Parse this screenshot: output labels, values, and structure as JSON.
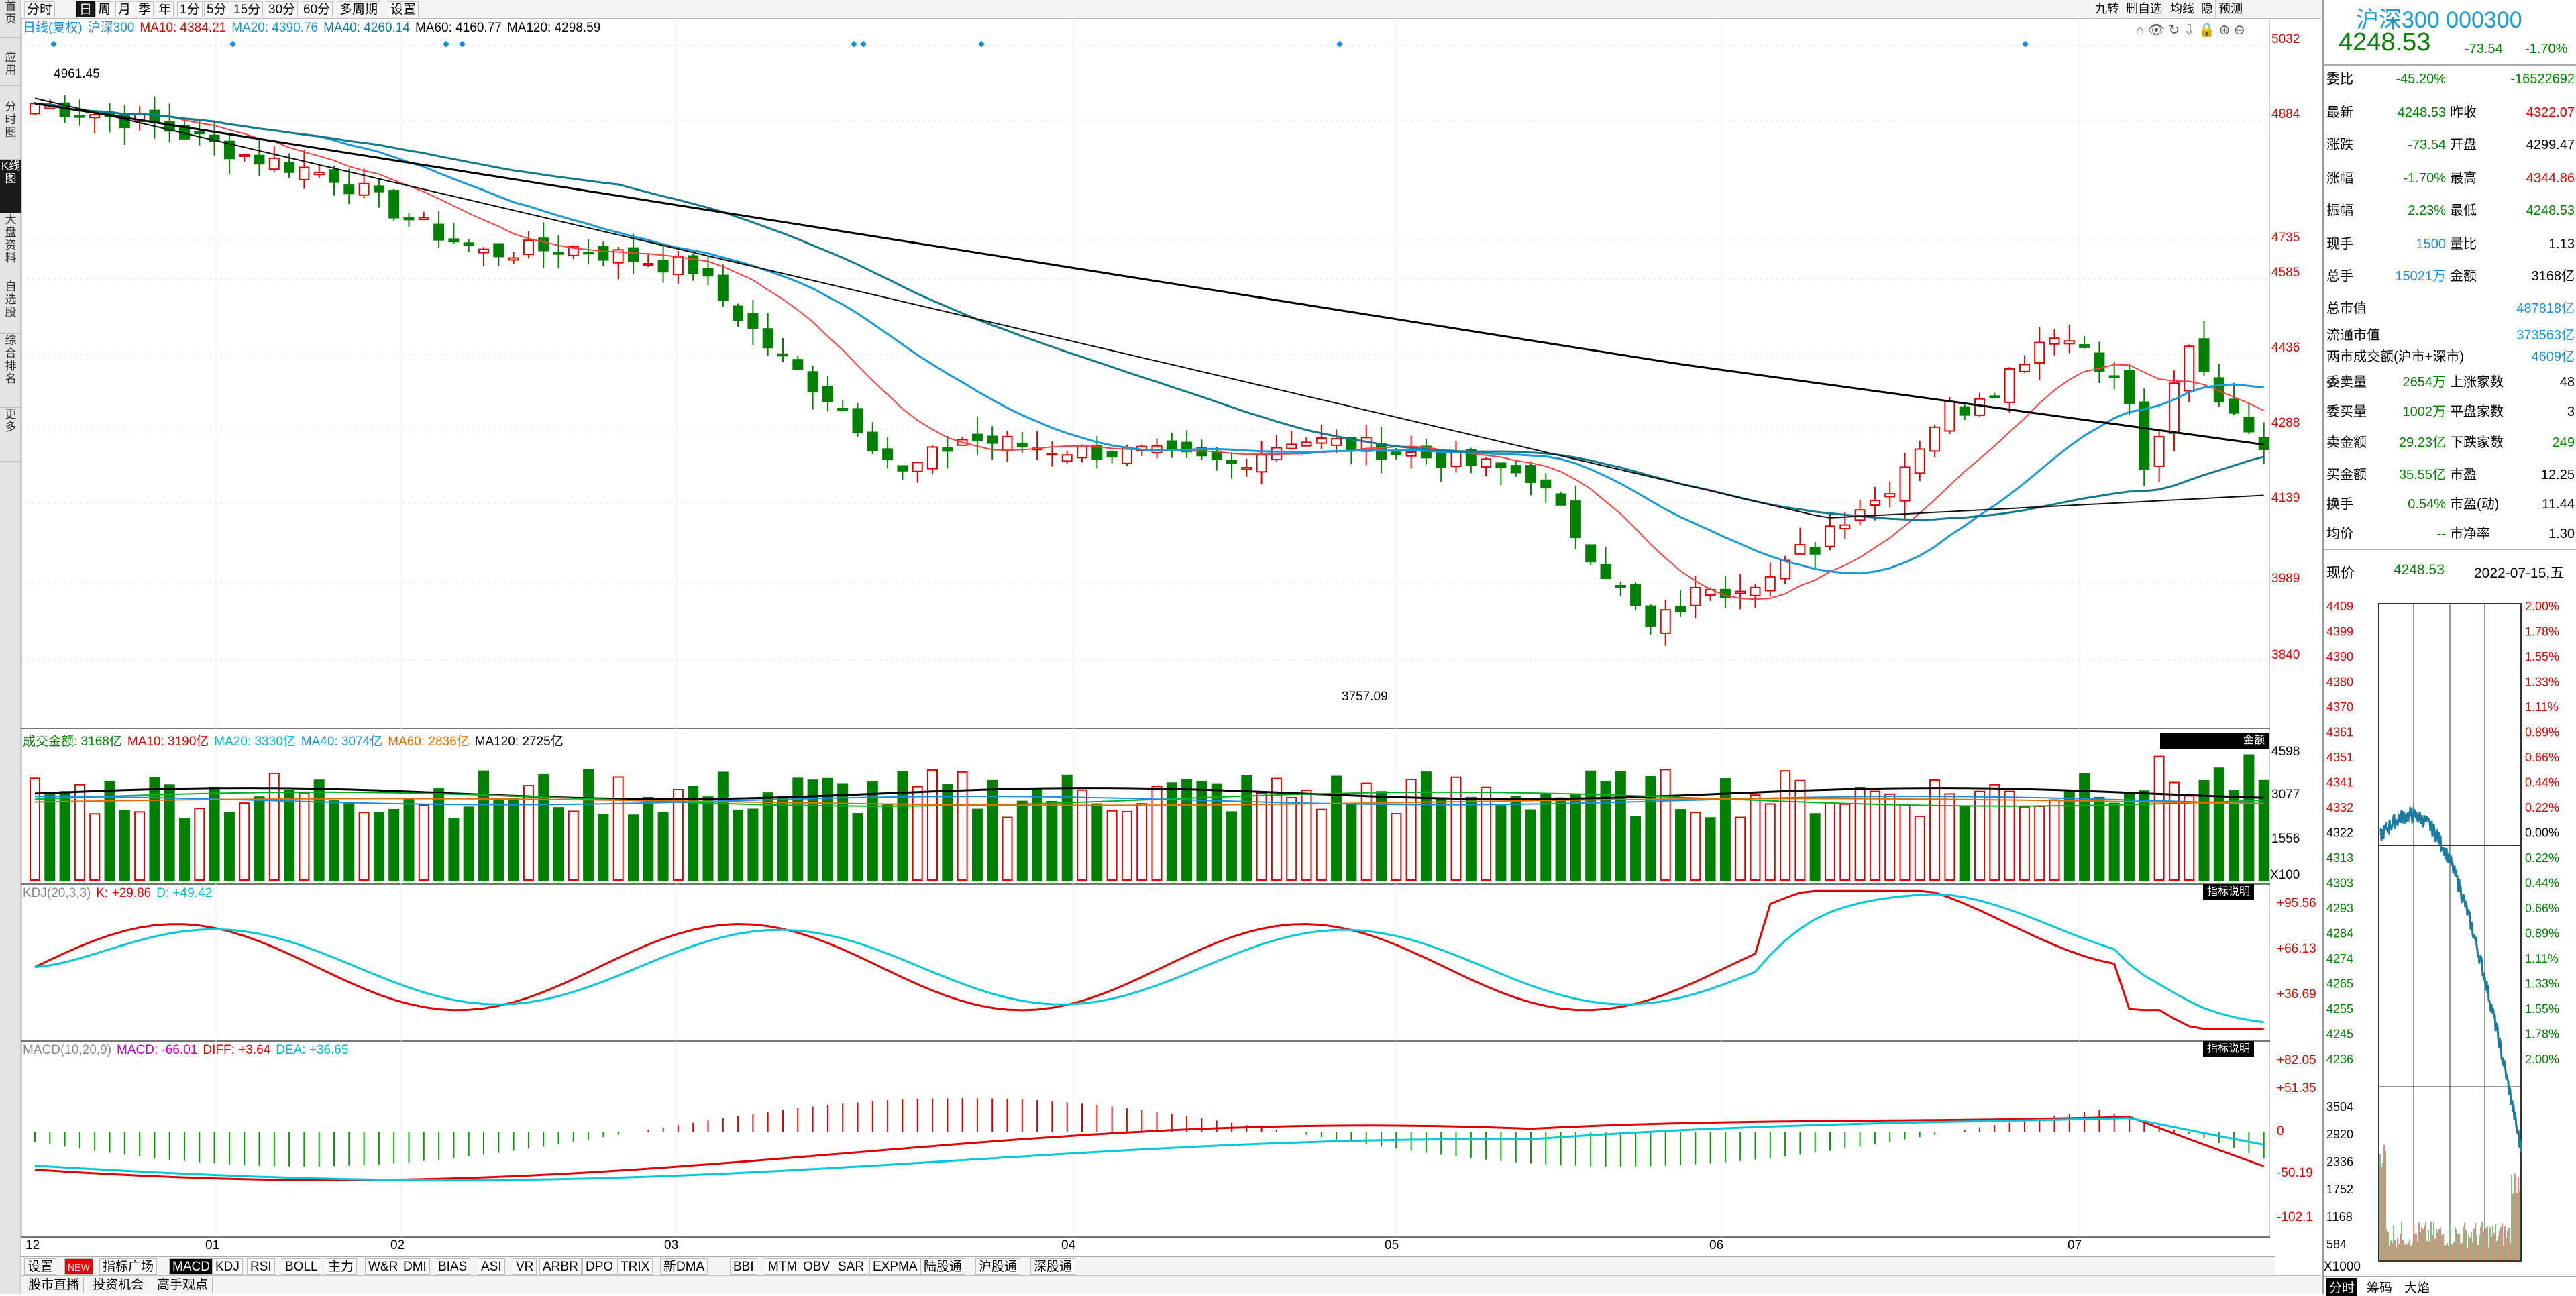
{
  "window": {
    "title": "沪深300 000300"
  },
  "left_sidebar": [
    "首页",
    "应用",
    "分时图",
    "K线图",
    "大盘资料",
    "自选股",
    "综合排名",
    "更多"
  ],
  "periods": [
    "分时",
    "日",
    "周",
    "月",
    "季",
    "年",
    "1分",
    "5分",
    "15分",
    "30分",
    "60分",
    "多周期",
    "设置"
  ],
  "toolbar_right": [
    "九转",
    "删自选",
    "均线",
    "隐",
    "预测"
  ],
  "main_legend": {
    "mode": "日线(复权)",
    "index": "沪深300",
    "ma10": "MA10: 4384.21",
    "ma20": "MA20: 4390.76",
    "ma40": "MA40: 4260.14",
    "ma60": "MA60: 4160.77",
    "ma120": "MA120: 4298.59"
  },
  "price_axis": [
    "5032",
    "4884",
    "4735",
    "4585",
    "4436",
    "4288",
    "4139",
    "3989",
    "3840"
  ],
  "price_marks": {
    "high": "4961.45",
    "low": "3757.09"
  },
  "vol_legend": {
    "label": "成交金额: 3168亿",
    "ma10": "MA10: 3190亿",
    "ma20": "MA20: 3330亿",
    "ma40": "MA40: 3074亿",
    "ma60": "MA60: 2836亿",
    "ma120": "MA120: 2725亿",
    "unit_btn": "金额",
    "unit": "X100"
  },
  "vol_axis": [
    "4598",
    "3077",
    "1556"
  ],
  "kdj_legend": {
    "label": "KDJ(20,3,3)",
    "k": "K: +29.86",
    "d": "D: +49.42",
    "btn": "指标说明"
  },
  "kdj_axis": [
    "+95.56",
    "+66.13",
    "+36.69"
  ],
  "macd_legend": {
    "label": "MACD(10,20,9)",
    "macd": "MACD: -66.01",
    "diff": "DIFF: +3.64",
    "dea": "DEA: +36.65",
    "btn": "指标说明"
  },
  "macd_axis": [
    "+82.05",
    "+51.35",
    "0",
    "-50.19",
    "-102.1"
  ],
  "x_labels": [
    "12",
    "01",
    "02",
    "03",
    "04",
    "05",
    "06",
    "07"
  ],
  "indicator_tabs": [
    "设置",
    "NEW",
    "指标广场",
    "MACD",
    "KDJ",
    "RSI",
    "BOLL",
    "主力",
    "W&R",
    "DMI",
    "BIAS",
    "ASI",
    "VR",
    "ARBR",
    "DPO",
    "TRIX",
    "新DMA",
    "BBI",
    "MTM",
    "OBV",
    "SAR",
    "EXPMA",
    "陆股通",
    "沪股通",
    "深股通"
  ],
  "bottom_links": [
    "股市直播",
    "投资机会",
    "高手观点"
  ],
  "quote": {
    "name": "沪深300 000300",
    "price": "4248.53",
    "change": "-73.54",
    "pct": "-1.70%",
    "rows": [
      {
        "k": "委比",
        "v": "-45.20%",
        "k2": "",
        "v2": "-16522692"
      },
      {
        "k": "最新",
        "v": "4248.53",
        "k2": "昨收",
        "v2": "4322.07"
      },
      {
        "k": "涨跌",
        "v": "-73.54",
        "k2": "开盘",
        "v2": "4299.47"
      },
      {
        "k": "涨幅",
        "v": "-1.70%",
        "k2": "最高",
        "v2": "4344.86"
      },
      {
        "k": "振幅",
        "v": "2.23%",
        "k2": "最低",
        "v2": "4248.53"
      },
      {
        "k": "现手",
        "v": "1500",
        "k2": "量比",
        "v2": "1.13"
      },
      {
        "k": "总手",
        "v": "15021万",
        "k2": "金额",
        "v2": "3168亿"
      },
      {
        "k": "总市值",
        "v": "",
        "k2": "",
        "v2": "487818亿"
      },
      {
        "k": "流通市值",
        "v": "",
        "k2": "",
        "v2": "373563亿"
      },
      {
        "k": "两市成交额(沪市+深市)",
        "v": "",
        "k2": "",
        "v2": "4609亿"
      },
      {
        "k": "委卖量",
        "v": "2654万",
        "k2": "上涨家数",
        "v2": "48"
      },
      {
        "k": "委买量",
        "v": "1002万",
        "k2": "平盘家数",
        "v2": "3"
      },
      {
        "k": "卖金额",
        "v": "29.23亿",
        "k2": "下跌家数",
        "v2": "249"
      },
      {
        "k": "买金额",
        "v": "35.55亿",
        "k2": "市盈",
        "v2": "12.25"
      },
      {
        "k": "换手",
        "v": "0.54%",
        "k2": "市盈(动)",
        "v2": "11.44"
      },
      {
        "k": "均价",
        "v": "--",
        "k2": "市净率",
        "v2": "1.30"
      }
    ],
    "now_label": "现价",
    "now_val": "4248.53",
    "date": "2022-07-15,五"
  },
  "mini_axis_left": [
    "4409",
    "4399",
    "4390",
    "4380",
    "4370",
    "4361",
    "4351",
    "4341",
    "4332",
    "4322",
    "4313",
    "4303",
    "4293",
    "4284",
    "4274",
    "4265",
    "4255",
    "4245",
    "4236"
  ],
  "mini_axis_right": [
    "2.00%",
    "1.78%",
    "1.55%",
    "1.33%",
    "1.11%",
    "0.89%",
    "0.66%",
    "0.44%",
    "0.22%",
    "0.00%",
    "0.22%",
    "0.44%",
    "0.66%",
    "0.89%",
    "1.11%",
    "1.33%",
    "1.55%",
    "1.78%",
    "2.00%"
  ],
  "mini_vol_axis": [
    "3504",
    "2920",
    "2336",
    "1752",
    "1168",
    "584"
  ],
  "mini_unit": "X1000",
  "mini_tabs": [
    "分时",
    "筹码",
    "大焰"
  ]
}
